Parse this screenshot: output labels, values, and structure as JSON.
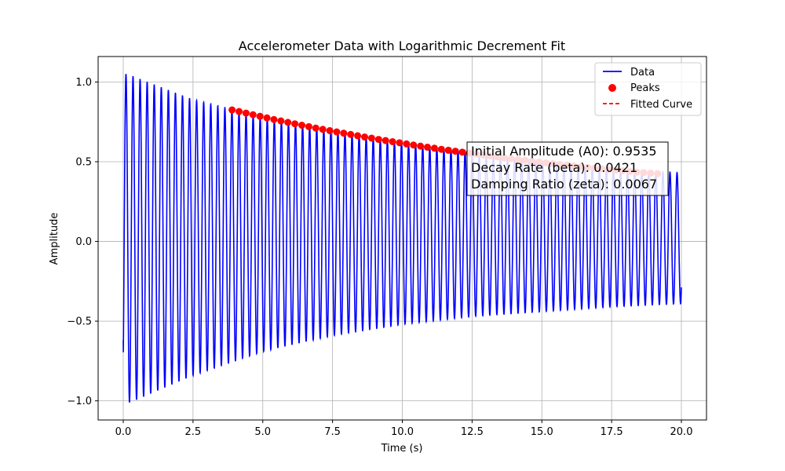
{
  "chart_data": {
    "type": "line",
    "title": "Accelerometer Data with Logarithmic Decrement Fit",
    "xlabel": "Time (s)",
    "ylabel": "Amplitude",
    "xlim": [
      -0.9,
      20.9
    ],
    "ylim": [
      -1.12,
      1.16
    ],
    "x_ticks": [
      "0.0",
      "2.5",
      "5.0",
      "7.5",
      "10.0",
      "12.5",
      "15.0",
      "17.5",
      "20.0"
    ],
    "x_tick_values": [
      0,
      2.5,
      5,
      7.5,
      10,
      12.5,
      15,
      17.5,
      20
    ],
    "y_ticks": [
      "−1.0",
      "−0.5",
      "0.0",
      "0.5",
      "1.0"
    ],
    "y_tick_values": [
      -1.0,
      -0.5,
      0.0,
      0.5,
      1.0
    ],
    "grid": true,
    "legend_position": "top-right",
    "series": [
      {
        "name": "Data",
        "kind": "line",
        "color": "#0000ff",
        "frequency_hz": 3.95,
        "x_start": 0.0,
        "x_end": 20.0,
        "upper_envelope": {
          "x": [
            0.15,
            2.5,
            5.0,
            7.5,
            10.0,
            12.5,
            15.0,
            17.5,
            20.0
          ],
          "y": [
            1.05,
            0.89,
            0.78,
            0.7,
            0.62,
            0.56,
            0.5,
            0.46,
            0.43
          ]
        },
        "lower_envelope": {
          "x": [
            0.25,
            2.5,
            5.0,
            7.5,
            10.0,
            12.5,
            15.0,
            17.5,
            20.0
          ],
          "y": [
            -1.01,
            -0.84,
            -0.69,
            -0.59,
            -0.52,
            -0.47,
            -0.44,
            -0.41,
            -0.39
          ]
        },
        "start_value": -0.62
      },
      {
        "name": "Peaks",
        "kind": "scatter",
        "color": "#ff0000",
        "x": [
          3.9,
          4.15,
          4.4,
          4.65,
          4.9,
          5.15,
          5.4,
          5.65,
          5.9,
          6.15,
          6.4,
          6.65,
          6.9,
          7.15,
          7.4,
          7.65,
          7.9,
          8.15,
          8.4,
          8.65,
          8.9,
          9.15,
          9.4,
          9.65,
          9.9,
          10.15,
          10.4,
          10.65,
          10.9,
          11.15,
          11.4,
          11.65,
          11.9,
          12.15,
          12.4,
          12.65,
          12.9,
          13.15,
          13.4,
          13.65,
          13.9,
          14.15,
          14.4,
          14.65,
          14.9,
          15.15,
          15.4,
          15.65,
          15.9,
          16.15,
          16.4,
          16.65,
          16.9,
          17.15,
          17.4,
          17.65,
          17.9,
          18.15,
          18.4,
          18.65,
          18.9,
          19.15
        ],
        "y": [
          0.825,
          0.815,
          0.805,
          0.795,
          0.785,
          0.775,
          0.765,
          0.756,
          0.747,
          0.738,
          0.729,
          0.72,
          0.711,
          0.703,
          0.695,
          0.687,
          0.679,
          0.671,
          0.663,
          0.655,
          0.648,
          0.64,
          0.633,
          0.626,
          0.619,
          0.612,
          0.605,
          0.598,
          0.591,
          0.585,
          0.578,
          0.572,
          0.566,
          0.56,
          0.554,
          0.548,
          0.542,
          0.536,
          0.53,
          0.525,
          0.519,
          0.514,
          0.509,
          0.503,
          0.498,
          0.493,
          0.488,
          0.483,
          0.478,
          0.473,
          0.469,
          0.464,
          0.46,
          0.455,
          0.451,
          0.447,
          0.443,
          0.439,
          0.435,
          0.432,
          0.428,
          0.425
        ]
      },
      {
        "name": "Fitted Curve",
        "kind": "line",
        "style": "dashed",
        "color": "#ff0000"
      }
    ],
    "annotation": {
      "lines": [
        "Initial Amplitude (A0): 0.9535",
        "Decay Rate (beta): 0.0421",
        "Damping Ratio (zeta): 0.0067"
      ]
    }
  }
}
